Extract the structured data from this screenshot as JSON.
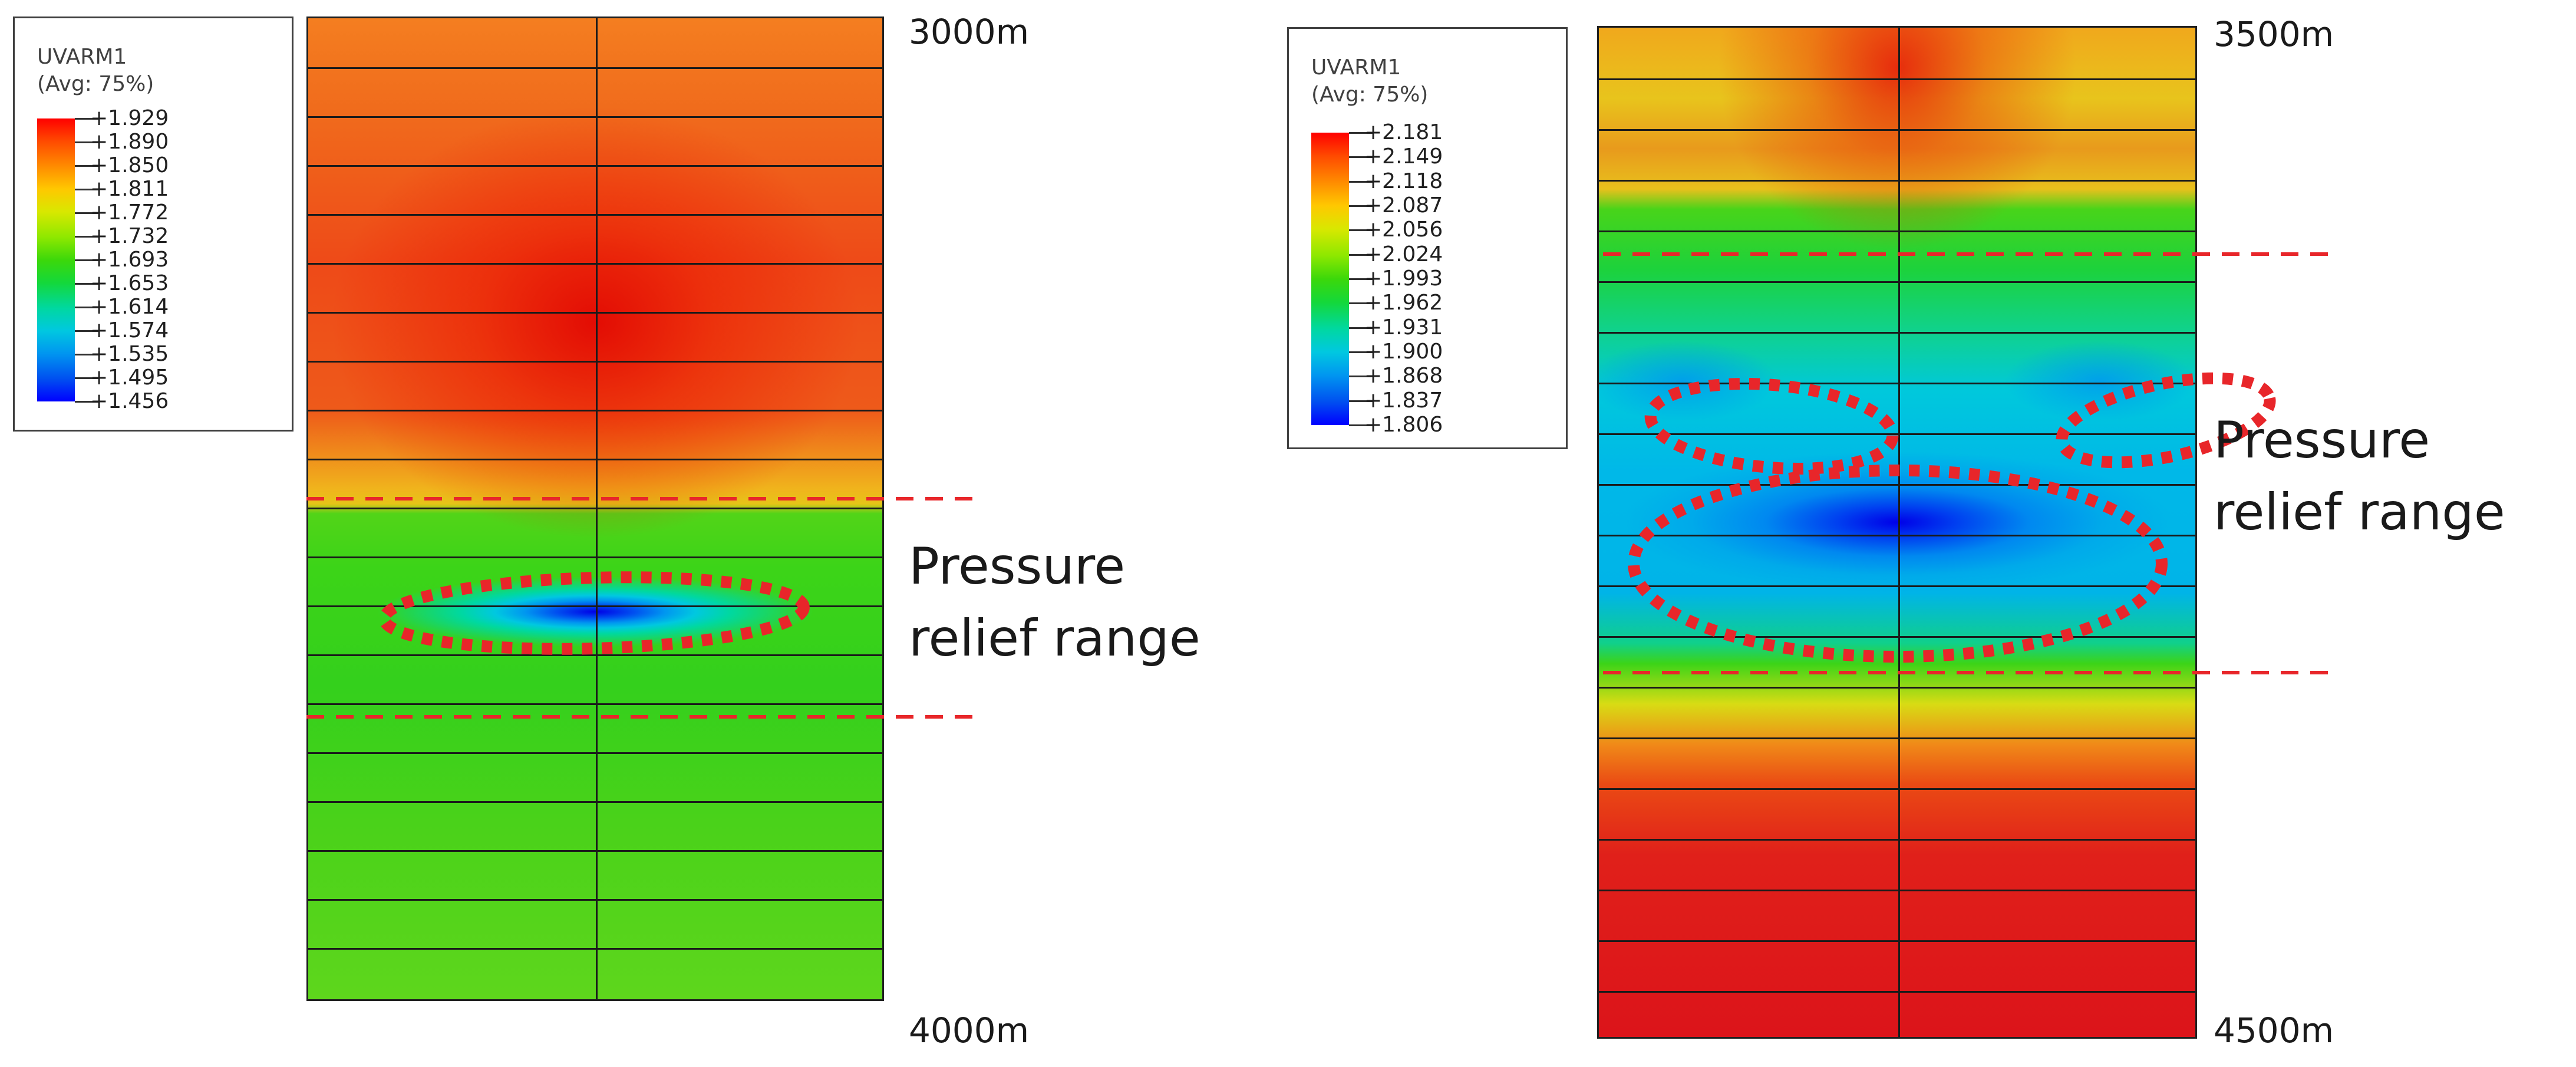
{
  "left": {
    "legend": {
      "title": "UVARM1",
      "subtitle": "(Avg: 75%)",
      "values": [
        "+1.929",
        "+1.890",
        "+1.850",
        "+1.811",
        "+1.772",
        "+1.732",
        "+1.693",
        "+1.653",
        "+1.614",
        "+1.574",
        "+1.535",
        "+1.495",
        "+1.456"
      ]
    },
    "depth_top": "3000m",
    "depth_bottom": "4000m",
    "annotation": "Pressure relief range"
  },
  "right": {
    "legend": {
      "title": "UVARM1",
      "subtitle": "(Avg: 75%)",
      "values": [
        "+2.181",
        "+2.149",
        "+2.118",
        "+2.087",
        "+2.056",
        "+2.024",
        "+1.993",
        "+1.962",
        "+1.931",
        "+1.900",
        "+1.868",
        "+1.837",
        "+1.806"
      ]
    },
    "depth_top": "3500m",
    "depth_bottom": "4500m",
    "annotation": "Pressure relief range"
  },
  "colors": {
    "colormap": [
      "#ff0000",
      "#ff4a00",
      "#ff8c00",
      "#ffc800",
      "#d8e800",
      "#8ee800",
      "#3cd80a",
      "#14d83a",
      "#00d8a0",
      "#00c8e0",
      "#0096f0",
      "#0050f0",
      "#0000ff"
    ],
    "marker": "#e8262a",
    "grid": "#1a1a1a"
  }
}
